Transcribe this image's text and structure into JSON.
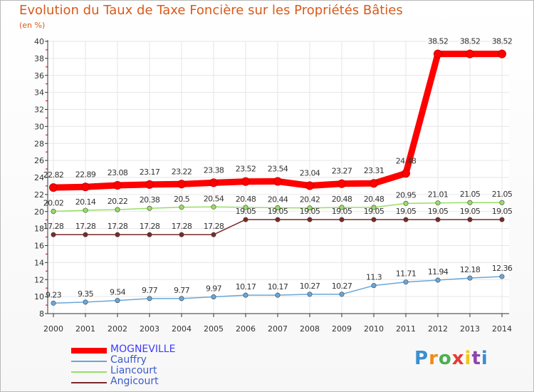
{
  "title": "Evolution du Taux de Taxe Foncière sur les Propriétés Bâties",
  "unit_label": "(en %)",
  "chart_data": {
    "type": "line",
    "title": "Evolution du Taux de Taxe Foncière sur les Propriétés Bâties",
    "ylabel": "(en %)",
    "xlabel": "",
    "x": [
      "2000",
      "2001",
      "2002",
      "2003",
      "2004",
      "2005",
      "2006",
      "2007",
      "2008",
      "2009",
      "2010",
      "2011",
      "2012",
      "2013",
      "2014"
    ],
    "ylim": [
      8,
      40
    ],
    "yticks": [
      8,
      10,
      12,
      14,
      16,
      18,
      20,
      22,
      24,
      26,
      28,
      30,
      32,
      34,
      36,
      38,
      40
    ],
    "series": [
      {
        "name": "MOGNEVILLE",
        "color": "#ff0000",
        "values": [
          22.82,
          22.89,
          23.08,
          23.17,
          23.22,
          23.38,
          23.52,
          23.54,
          23.04,
          23.27,
          23.31,
          24.48,
          38.52,
          38.52,
          38.52
        ],
        "labels": [
          "22.82",
          "22.89",
          "23.08",
          "23.17",
          "23.22",
          "23.38",
          "23.52",
          "23.54",
          "23.04",
          "23.27",
          "23.31",
          "24.48",
          "38.52",
          "38.52",
          "38.52"
        ]
      },
      {
        "name": "Cauffry",
        "color": "#6aa7d8",
        "values": [
          9.23,
          9.35,
          9.54,
          9.77,
          9.77,
          9.97,
          10.17,
          10.17,
          10.27,
          10.27,
          11.3,
          11.71,
          11.94,
          12.18,
          12.36
        ],
        "labels": [
          "9.23",
          "9.35",
          "9.54",
          "9.77",
          "9.77",
          "9.97",
          "10.17",
          "10.17",
          "10.27",
          "10.27",
          "11.3",
          "11.71",
          "11.94",
          "12.18",
          "12.36"
        ]
      },
      {
        "name": "Liancourt",
        "color": "#99dd66",
        "values": [
          20.02,
          20.14,
          20.22,
          20.38,
          20.5,
          20.54,
          20.48,
          20.44,
          20.42,
          20.48,
          20.48,
          20.95,
          21.01,
          21.05,
          21.05
        ],
        "labels": [
          "20.02",
          "20.14",
          "20.22",
          "20.38",
          "20.5",
          "20.54",
          "20.48",
          "20.44",
          "20.42",
          "20.48",
          "20.48",
          "20.95",
          "21.01",
          "21.05",
          "21.05"
        ]
      },
      {
        "name": "Angicourt",
        "color": "#7a2a2a",
        "values": [
          17.28,
          17.28,
          17.28,
          17.28,
          17.28,
          17.28,
          19.05,
          19.05,
          19.05,
          19.05,
          19.05,
          19.05,
          19.05,
          19.05,
          19.05
        ],
        "labels": [
          "17.28",
          "17.28",
          "17.28",
          "17.28",
          "17.28",
          "17.28",
          "19.05",
          "19.05",
          "19.05",
          "19.05",
          "19.05",
          "19.05",
          "19.05",
          "19.05",
          "19.05"
        ]
      }
    ],
    "legend": [
      "MOGNEVILLE",
      "Cauffry",
      "Liancourt",
      "Angicourt"
    ],
    "legend_position": "bottom-left",
    "grid": true
  },
  "logo": {
    "letters": [
      "P",
      "r",
      "o",
      "x",
      "i",
      "t",
      "i"
    ],
    "colors": [
      "#3a8fd0",
      "#f08a1c",
      "#4caf50",
      "#e53935",
      "#f5c518",
      "#8e44ad",
      "#3a8fd0"
    ]
  }
}
